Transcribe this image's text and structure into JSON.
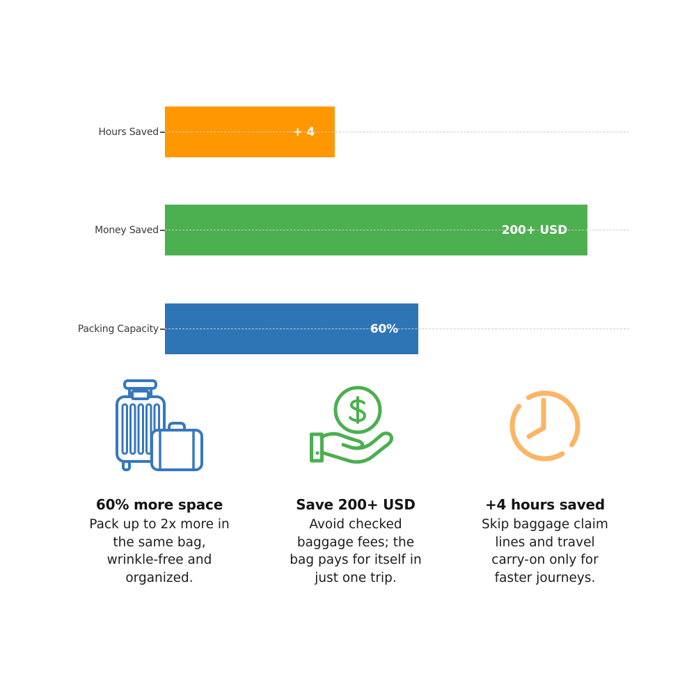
{
  "chart_data": {
    "type": "bar",
    "orientation": "horizontal",
    "title": "",
    "categories": [
      "Hours Saved",
      "Money Saved",
      "Packing Capacity"
    ],
    "values": [
      36.6,
      91.0,
      54.6
    ],
    "values_note": "bar length as percent of plotted axis width; axis has no numeric scale shown",
    "value_labels": [
      "+ 4",
      "200+ USD",
      "60%"
    ],
    "bar_colors": [
      "#FF9800",
      "#4CAF50",
      "#2E75B6"
    ],
    "grid": "dashed horizontal line per category, drawn across full axis width",
    "gridline_color": "#cbcbcb",
    "legend": "none",
    "xlabel": "",
    "ylabel": ""
  },
  "cards": [
    {
      "icon": "luggage-icon",
      "icon_color": "#3578BE",
      "title": "60% more space",
      "body": "Pack up to 2x more in\nthe same bag,\nwrinkle-free and\norganized."
    },
    {
      "icon": "dollar-hand-icon",
      "icon_color": "#4CAF50",
      "title": "Save 200+ USD",
      "body": "Avoid checked\nbaggage fees; the\nbag pays for itself in\njust one trip."
    },
    {
      "icon": "clock-icon",
      "icon_color": "#FBB564",
      "title": "+4 hours saved",
      "body": "Skip baggage claim\nlines and travel\ncarry-on only for\nfaster journeys."
    }
  ]
}
